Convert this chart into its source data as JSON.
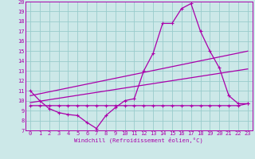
{
  "xlabel": "Windchill (Refroidissement éolien,°C)",
  "bg_color": "#cce8e8",
  "grid_color": "#99cccc",
  "line_color": "#aa00aa",
  "xlim": [
    -0.5,
    23.5
  ],
  "ylim": [
    7,
    20
  ],
  "xticks": [
    0,
    1,
    2,
    3,
    4,
    5,
    6,
    7,
    8,
    9,
    10,
    11,
    12,
    13,
    14,
    15,
    16,
    17,
    18,
    19,
    20,
    21,
    22,
    23
  ],
  "yticks": [
    7,
    8,
    9,
    10,
    11,
    12,
    13,
    14,
    15,
    16,
    17,
    18,
    19,
    20
  ],
  "line1_x": [
    0,
    1,
    2,
    3,
    4,
    5,
    6,
    7,
    8,
    9,
    10,
    11,
    12,
    13,
    14,
    15,
    16,
    17,
    18,
    19,
    20,
    21,
    22,
    23
  ],
  "line1_y": [
    11.0,
    10.0,
    9.2,
    8.8,
    8.6,
    8.5,
    7.8,
    7.2,
    8.5,
    9.3,
    10.0,
    10.2,
    13.0,
    14.8,
    17.8,
    17.8,
    19.3,
    19.8,
    17.0,
    15.0,
    13.3,
    10.5,
    9.7,
    9.7
  ],
  "line2_x": [
    0,
    1,
    2,
    3,
    4,
    5,
    6,
    7,
    8,
    9,
    10,
    11,
    12,
    13,
    14,
    15,
    16,
    17,
    18,
    19,
    20,
    21,
    22,
    23
  ],
  "line2_y": [
    9.5,
    9.5,
    9.5,
    9.5,
    9.5,
    9.5,
    9.5,
    9.5,
    9.5,
    9.5,
    9.5,
    9.5,
    9.5,
    9.5,
    9.5,
    9.5,
    9.5,
    9.5,
    9.5,
    9.5,
    9.5,
    9.5,
    9.5,
    9.7
  ],
  "line3_x": [
    0,
    23
  ],
  "line3_y": [
    9.8,
    13.2
  ],
  "line4_x": [
    0,
    23
  ],
  "line4_y": [
    10.5,
    15.0
  ]
}
